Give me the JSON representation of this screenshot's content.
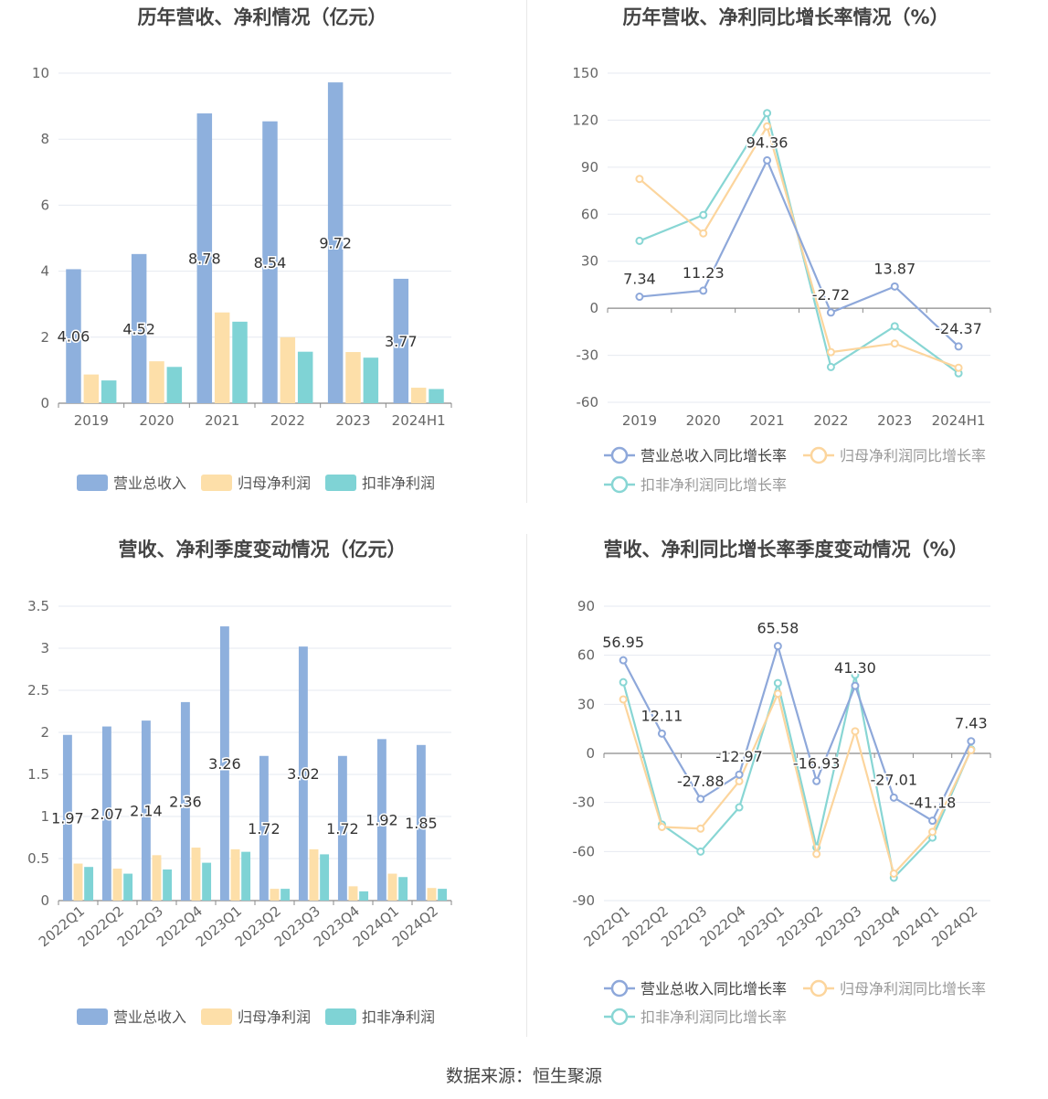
{
  "source": "数据来源：恒生聚源",
  "colors": {
    "revenue": "#8eb0dd",
    "net_profit": "#fddfa9",
    "deducted_profit": "#7fd3d5",
    "revenue_line": "#8ea8da",
    "net_line": "#fcd59d",
    "deducted_line": "#88d6d4"
  },
  "chart_data": [
    {
      "type": "bar",
      "title": "历年营收、净利情况（亿元）",
      "categories": [
        "2019",
        "2020",
        "2021",
        "2022",
        "2023",
        "2024H1"
      ],
      "series": [
        {
          "name": "营业总收入",
          "values": [
            4.06,
            4.52,
            8.78,
            8.54,
            9.72,
            3.77
          ],
          "labels": [
            "4.06",
            "4.52",
            "8.78",
            "8.54",
            "9.72",
            "3.77"
          ]
        },
        {
          "name": "归母净利润",
          "values": [
            0.87,
            1.27,
            2.75,
            2.0,
            1.55,
            0.47
          ]
        },
        {
          "name": "扣非净利润",
          "values": [
            0.69,
            1.1,
            2.47,
            1.56,
            1.38,
            0.43
          ]
        }
      ],
      "yticks": [
        "0",
        "2",
        "4",
        "6",
        "8",
        "10"
      ],
      "ylim": [
        0,
        10
      ]
    },
    {
      "type": "line",
      "title": "历年营收、净利同比增长率情况（%）",
      "categories": [
        "2019",
        "2020",
        "2021",
        "2022",
        "2023",
        "2024H1"
      ],
      "series": [
        {
          "name": "营业总收入同比增长率",
          "values": [
            7.34,
            11.23,
            94.36,
            -2.72,
            13.87,
            -24.37
          ],
          "labels": [
            "7.34",
            "11.23",
            "94.36",
            "-2.72",
            "13.87",
            "-24.37"
          ]
        },
        {
          "name": "归母净利润同比增长率",
          "values": [
            82.5,
            47.8,
            116.0,
            -28.0,
            -22.5,
            -38.0
          ]
        },
        {
          "name": "扣非净利润同比增长率",
          "values": [
            43.0,
            59.5,
            124.5,
            -37.5,
            -11.5,
            -41.5
          ]
        }
      ],
      "yticks": [
        "-60",
        "-30",
        "0",
        "30",
        "60",
        "90",
        "120",
        "150"
      ],
      "ylim": [
        -60,
        150
      ]
    },
    {
      "type": "bar",
      "title": "营收、净利季度变动情况（亿元）",
      "categories": [
        "2022Q1",
        "2022Q2",
        "2022Q3",
        "2022Q4",
        "2023Q1",
        "2023Q2",
        "2023Q3",
        "2023Q4",
        "2024Q1",
        "2024Q2"
      ],
      "series": [
        {
          "name": "营业总收入",
          "values": [
            1.97,
            2.07,
            2.14,
            2.36,
            3.26,
            1.72,
            3.02,
            1.72,
            1.92,
            1.85
          ],
          "labels": [
            "1.97",
            "2.07",
            "2.14",
            "2.36",
            "3.26",
            "1.72",
            "3.02",
            "1.72",
            "1.92",
            "1.85"
          ]
        },
        {
          "name": "归母净利润",
          "values": [
            0.44,
            0.38,
            0.54,
            0.63,
            0.61,
            0.14,
            0.61,
            0.17,
            0.32,
            0.15
          ]
        },
        {
          "name": "扣非净利润",
          "values": [
            0.4,
            0.32,
            0.37,
            0.45,
            0.58,
            0.14,
            0.55,
            0.11,
            0.28,
            0.14
          ]
        }
      ],
      "yticks": [
        "0",
        "0.5",
        "1",
        "1.5",
        "2",
        "2.5",
        "3",
        "3.5"
      ],
      "ylim": [
        0,
        3.5
      ]
    },
    {
      "type": "line",
      "title": "营收、净利同比增长率季度变动情况（%）",
      "categories": [
        "2022Q1",
        "2022Q2",
        "2022Q3",
        "2022Q4",
        "2023Q1",
        "2023Q2",
        "2023Q3",
        "2023Q4",
        "2024Q1",
        "2024Q2"
      ],
      "series": [
        {
          "name": "营业总收入同比增长率",
          "values": [
            56.95,
            12.11,
            -27.88,
            -12.97,
            65.58,
            -16.93,
            41.3,
            -27.01,
            -41.18,
            7.43
          ],
          "labels": [
            "56.95",
            "12.11",
            "-27.88",
            "-12.97",
            "65.58",
            "-16.93",
            "41.30",
            "-27.01",
            "-41.18",
            "7.43"
          ]
        },
        {
          "name": "归母净利润同比增长率",
          "values": [
            33.0,
            -45.0,
            -46.0,
            -17.0,
            36.5,
            -61.5,
            13.5,
            -73.5,
            -48.0,
            2.0
          ]
        },
        {
          "name": "扣非净利润同比增长率",
          "values": [
            43.5,
            -43.5,
            -60.0,
            -33.0,
            43.0,
            -57.5,
            48.0,
            -76.0,
            -51.5,
            2.5
          ]
        }
      ],
      "yticks": [
        "-90",
        "-60",
        "-30",
        "0",
        "30",
        "60",
        "90"
      ],
      "ylim": [
        -90,
        90
      ]
    }
  ]
}
